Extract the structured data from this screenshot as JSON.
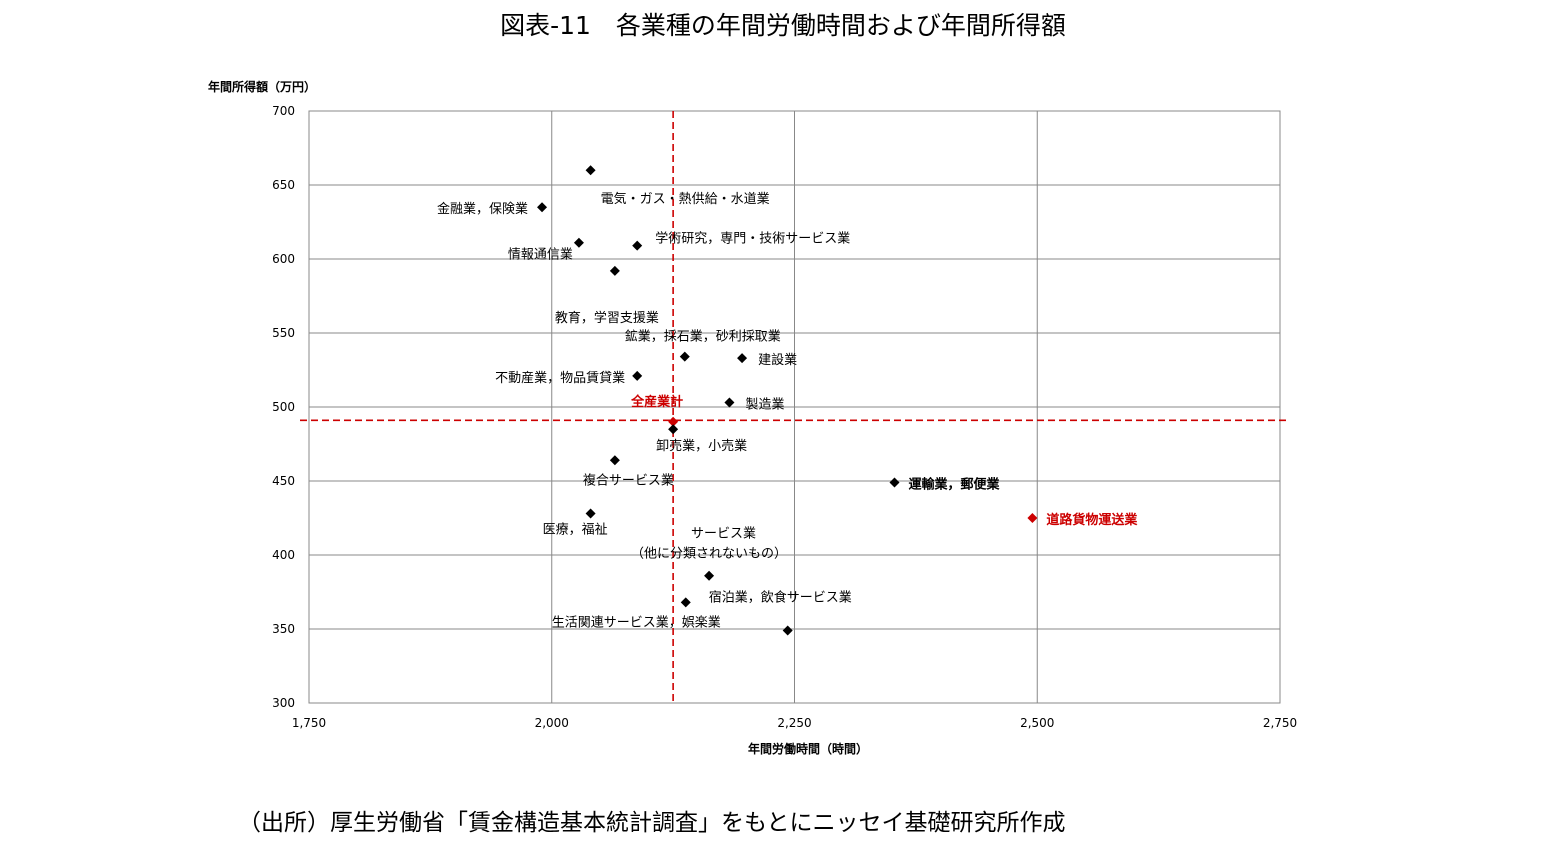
{
  "chart_data": {
    "type": "scatter",
    "title": "図表-11　各業種の年間労働時間および年間所得額",
    "xlabel": "年間労働時間（時間）",
    "ylabel": "年間所得額（万円）",
    "xlim": [
      1750,
      2750
    ],
    "ylim": [
      300,
      700
    ],
    "x_ticks": [
      1750,
      2000,
      2250,
      2500,
      2750
    ],
    "y_ticks": [
      300,
      350,
      400,
      450,
      500,
      550,
      600,
      650,
      700
    ],
    "x_tick_labels": [
      "1,750",
      "2,000",
      "2,250",
      "2,500",
      "2,750"
    ],
    "y_tick_labels": [
      "300",
      "350",
      "400",
      "450",
      "500",
      "550",
      "600",
      "650",
      "700"
    ],
    "grid": true,
    "reference_lines": {
      "x": 2125,
      "y": 491,
      "color": "#cc0000"
    },
    "points": [
      {
        "label": "電気・ガス・熱供給・水道業",
        "x": 2040,
        "y": 660,
        "color": "#000000"
      },
      {
        "label": "金融業，保険業",
        "x": 1990,
        "y": 635,
        "color": "#000000"
      },
      {
        "label": "学術研究，専門・技術サービス業",
        "x": 2088,
        "y": 609,
        "color": "#000000"
      },
      {
        "label": "情報通信業",
        "x": 2028,
        "y": 611,
        "color": "#000000"
      },
      {
        "label": "教育，学習支援業",
        "x": 2065,
        "y": 592,
        "color": "#000000"
      },
      {
        "label": "鉱業，採石業，砂利採取業",
        "x": 2137,
        "y": 534,
        "color": "#000000"
      },
      {
        "label": "建設業",
        "x": 2196,
        "y": 533,
        "color": "#000000"
      },
      {
        "label": "不動産業，物品賃貸業",
        "x": 2088,
        "y": 521,
        "color": "#000000"
      },
      {
        "label": "製造業",
        "x": 2183,
        "y": 503,
        "color": "#000000"
      },
      {
        "label": "全産業計",
        "x": 2125,
        "y": 490,
        "color": "#cc0000"
      },
      {
        "label": "卸売業，小売業",
        "x": 2125,
        "y": 485,
        "color": "#000000"
      },
      {
        "label": "複合サービス業",
        "x": 2065,
        "y": 464,
        "color": "#000000"
      },
      {
        "label": "運輸業，郵便業",
        "x": 2353,
        "y": 449,
        "color": "#000000"
      },
      {
        "label": "道路貨物運送業",
        "x": 2495,
        "y": 425,
        "color": "#cc0000"
      },
      {
        "label": "医療，福祉",
        "x": 2040,
        "y": 428,
        "color": "#000000"
      },
      {
        "label": "サービス業",
        "label2": "（他に分類されないもの）",
        "x": 2162,
        "y": 386,
        "color": "#000000"
      },
      {
        "label": "宿泊業，飲食サービス業",
        "x": 2138,
        "y": 368,
        "color": "#000000"
      },
      {
        "label": "生活関連サービス業，娯楽業",
        "x": 2243,
        "y": 349,
        "color": "#000000"
      }
    ]
  },
  "source_note": "（出所）厚生労働省「賃金構造基本統計調査」をもとにニッセイ基礎研究所作成"
}
